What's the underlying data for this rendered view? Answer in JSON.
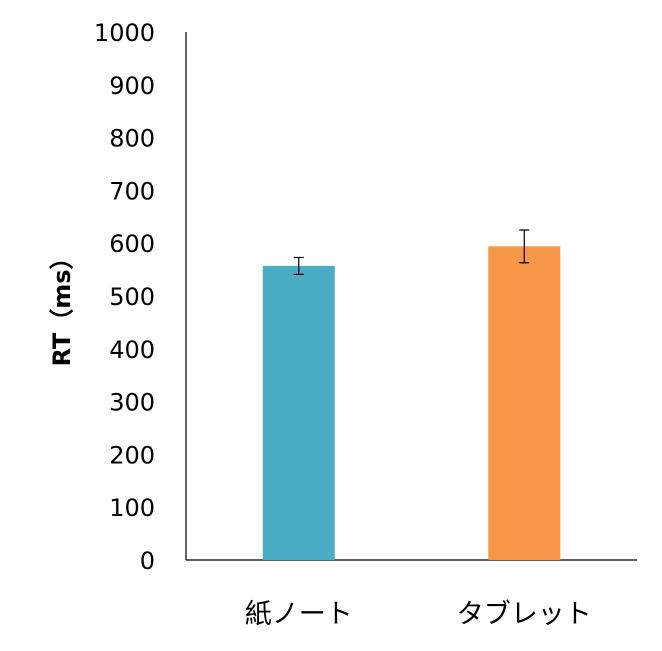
{
  "chart_data": {
    "type": "bar",
    "title": "",
    "xlabel": "",
    "ylabel": "RT（ms）",
    "ylim": [
      0,
      1000
    ],
    "yticks": [
      0,
      100,
      200,
      300,
      400,
      500,
      600,
      700,
      800,
      900,
      1000
    ],
    "grid": false,
    "legend": "none",
    "categories": [
      "紙ノート",
      "タブレット"
    ],
    "values": [
      557,
      594
    ],
    "error": [
      {
        "low": 541,
        "high": 573
      },
      {
        "low": 563,
        "high": 625
      }
    ],
    "colors": [
      "#4bacc6",
      "#f79646"
    ]
  }
}
